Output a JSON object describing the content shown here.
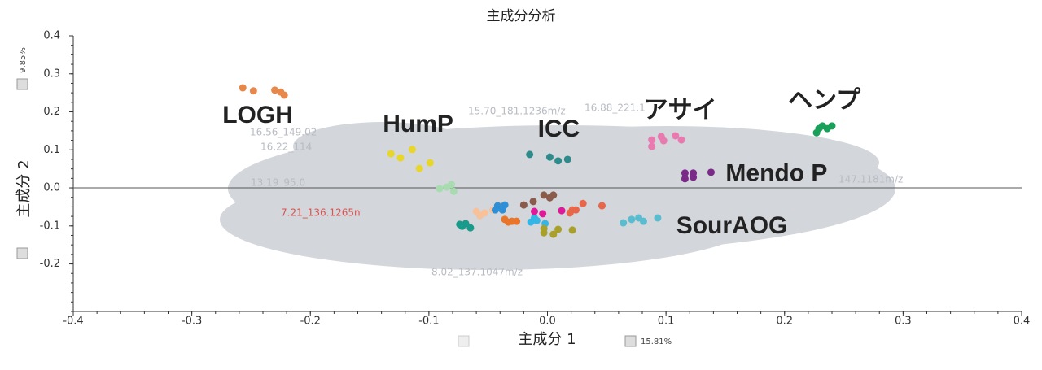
{
  "chart_data": {
    "type": "scatter",
    "title": "主成分分析",
    "xlabel": "主成分 1",
    "ylabel": "主成分 2",
    "x_variance": "15.81%",
    "y_variance": "9.85%",
    "xlim": [
      -0.4,
      0.4
    ],
    "ylim": [
      -0.325,
      0.4
    ],
    "xticks": [
      -0.4,
      -0.3,
      -0.2,
      -0.1,
      {
        "value": 0,
        "label": "0.0"
      },
      0.1,
      0.2,
      0.3,
      0.4
    ],
    "yticks": [
      -0.2,
      -0.1,
      {
        "value": 0,
        "label": "0.0"
      },
      0.1,
      0.2,
      0.3,
      0.4
    ],
    "zero_line": true,
    "loadings": [
      "15.70_181.1236m/z",
      "16.88_221.1",
      "16.56_149.02",
      "16.22_114",
      "13.19_95.0",
      "7.21_136.1265n",
      "8.02_137.1047m/z",
      "147.1181m/z"
    ],
    "series": [
      {
        "name": "LOGH",
        "color": "#e8874a",
        "x": [
          -0.257,
          -0.248,
          -0.23,
          -0.225,
          -0.222
        ],
        "values": [
          0.263,
          0.255,
          0.257,
          0.252,
          0.244
        ]
      },
      {
        "name": "HumP",
        "color": "#e8d62a",
        "x": [
          -0.132,
          -0.124,
          -0.114,
          -0.108,
          -0.099
        ],
        "values": [
          0.09,
          0.079,
          0.101,
          0.051,
          0.066
        ]
      },
      {
        "color": "#a8dbb0",
        "x": [
          -0.091,
          -0.081,
          -0.079,
          -0.085
        ],
        "values": [
          -0.002,
          0.009,
          -0.009,
          0.002
        ]
      },
      {
        "name": "ICC",
        "color": "#2e8b8b",
        "x": [
          -0.015,
          0.002,
          0.009,
          0.017
        ],
        "values": [
          0.088,
          0.081,
          0.071,
          0.075
        ]
      },
      {
        "name": "アサイ",
        "color": "#e87ab0",
        "x": [
          0.088,
          0.096,
          0.098,
          0.108,
          0.113,
          0.088
        ],
        "values": [
          0.126,
          0.135,
          0.124,
          0.137,
          0.126,
          0.109
        ]
      },
      {
        "name": "ヘンプ",
        "color": "#19a05a",
        "x": [
          0.227,
          0.232,
          0.236,
          0.24,
          0.229
        ],
        "values": [
          0.145,
          0.163,
          0.156,
          0.163,
          0.156
        ]
      },
      {
        "name": "Mendo P",
        "color": "#7b2a8a",
        "x": [
          0.116,
          0.123,
          0.116,
          0.123,
          0.138
        ],
        "values": [
          0.039,
          0.039,
          0.024,
          0.028,
          0.041
        ]
      },
      {
        "name": "SourAOG",
        "color": "#5bbccf",
        "x": [
          0.064,
          0.071,
          0.077,
          0.081,
          0.093
        ],
        "values": [
          -0.092,
          -0.083,
          -0.079,
          -0.088,
          -0.079
        ]
      },
      {
        "color": "#f7c19a",
        "x": [
          -0.06,
          -0.053,
          -0.046,
          -0.057
        ],
        "values": [
          -0.062,
          -0.066,
          -0.058,
          -0.073
        ]
      },
      {
        "color": "#1a9a8a",
        "x": [
          -0.074,
          -0.069,
          -0.065,
          -0.072
        ],
        "values": [
          -0.096,
          -0.094,
          -0.105,
          -0.101
        ]
      },
      {
        "color": "#2e8fd6",
        "x": [
          -0.042,
          -0.036,
          -0.038,
          -0.044
        ],
        "values": [
          -0.047,
          -0.045,
          -0.058,
          -0.058
        ]
      },
      {
        "color": "#e8752a",
        "x": [
          -0.036,
          -0.03,
          -0.026,
          -0.033
        ],
        "values": [
          -0.083,
          -0.088,
          -0.088,
          -0.09
        ]
      },
      {
        "color": "#8a5a4a",
        "x": [
          -0.02,
          -0.012,
          -0.003,
          0.002,
          0.005
        ],
        "values": [
          -0.045,
          -0.036,
          -0.019,
          -0.026,
          -0.019
        ]
      },
      {
        "color": "#33b6e6",
        "x": [
          -0.014,
          -0.009,
          -0.002,
          -0.011
        ],
        "values": [
          -0.09,
          -0.086,
          -0.094,
          -0.079
        ]
      },
      {
        "color": "#e0199a",
        "x": [
          -0.011,
          -0.004,
          0.012
        ],
        "values": [
          -0.062,
          -0.068,
          -0.06
        ]
      },
      {
        "color": "#a8a02a",
        "x": [
          -0.003,
          0.005,
          0.009,
          0.021,
          -0.003
        ],
        "values": [
          -0.118,
          -0.122,
          -0.109,
          -0.111,
          -0.107
        ]
      },
      {
        "color": "#e8664a",
        "x": [
          0.019,
          0.024,
          0.03,
          0.046,
          0.021
        ],
        "values": [
          -0.066,
          -0.058,
          -0.041,
          -0.047,
          -0.058
        ]
      }
    ]
  }
}
